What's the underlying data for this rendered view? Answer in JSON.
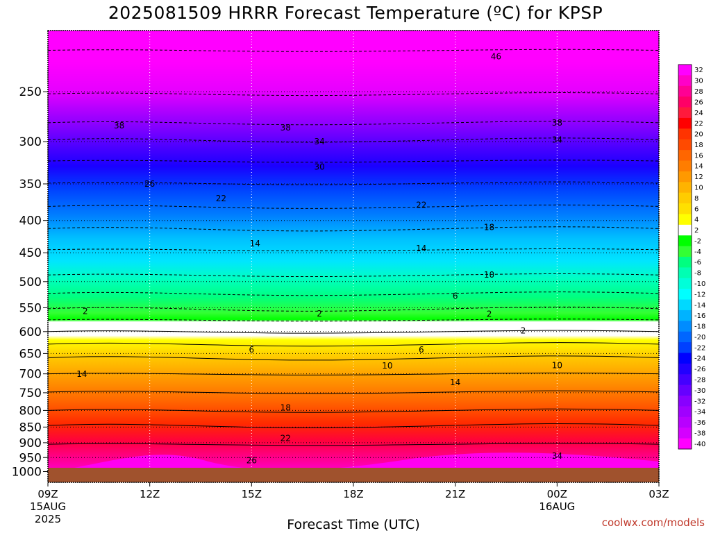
{
  "title": "2025081509 HRRR Forecast Temperature (ºC) for KPSP",
  "credit": "coolwx.com/models",
  "chart_data": {
    "type": "heatmap",
    "title": "2025081509 HRRR Forecast Temperature (ºC) for KPSP",
    "xlabel": "Forecast Time (UTC)",
    "ylabel": "",
    "y_scale": "log-pressure (inverted)",
    "y_ticks": [
      250,
      300,
      350,
      400,
      450,
      500,
      550,
      600,
      650,
      700,
      750,
      800,
      850,
      900,
      950,
      1000
    ],
    "x_ticks": [
      {
        "label": "09Z",
        "sub1": "15AUG",
        "sub2": "2025"
      },
      {
        "label": "12Z",
        "sub1": "",
        "sub2": ""
      },
      {
        "label": "15Z",
        "sub1": "",
        "sub2": ""
      },
      {
        "label": "18Z",
        "sub1": "",
        "sub2": ""
      },
      {
        "label": "21Z",
        "sub1": "",
        "sub2": ""
      },
      {
        "label": "00Z",
        "sub1": "16AUG",
        "sub2": ""
      },
      {
        "label": "03Z",
        "sub1": "",
        "sub2": ""
      }
    ],
    "x_hours": [
      0,
      3,
      6,
      9,
      12,
      15,
      18
    ],
    "colorbar_labels": [
      "32",
      "30",
      "28",
      "26",
      "24",
      "22",
      "20",
      "18",
      "16",
      "14",
      "12",
      "10",
      "8",
      "6",
      "4",
      "2",
      "-2",
      "-4",
      "-6",
      "-8",
      "-10",
      "-12",
      "-14",
      "-16",
      "-18",
      "-20",
      "-22",
      "-24",
      "-26",
      "-28",
      "-30",
      "-32",
      "-34",
      "-36",
      "-38",
      "-40"
    ],
    "colorbar_colors": [
      "#ff00ff",
      "#ff00c8",
      "#ff0094",
      "#ff0066",
      "#ff1a3c",
      "#ff0000",
      "#ff3300",
      "#ff4a00",
      "#ff6600",
      "#ff7d00",
      "#ff9900",
      "#ffb300",
      "#ffcc00",
      "#ffe000",
      "#ffff00",
      "#ffffff",
      "#00ff00",
      "#33ff33",
      "#00ff80",
      "#00ffb3",
      "#00ffd9",
      "#00ffff",
      "#00d9ff",
      "#00b3ff",
      "#008cff",
      "#0066ff",
      "#0040ff",
      "#0000ff",
      "#2200ff",
      "#4400ff",
      "#6600ff",
      "#8800ff",
      "#a000ff",
      "#b800ff",
      "#d400ff",
      "#ff00ff"
    ],
    "contour_labels": [
      {
        "value": "46",
        "hour": 13.2,
        "p": 220
      },
      {
        "value": "38",
        "hour": 2.1,
        "p": 283
      },
      {
        "value": "38",
        "hour": 7.0,
        "p": 285
      },
      {
        "value": "38",
        "hour": 15.0,
        "p": 280
      },
      {
        "value": "34",
        "hour": 8.0,
        "p": 300
      },
      {
        "value": "34",
        "hour": 15.0,
        "p": 298
      },
      {
        "value": "30",
        "hour": 8.0,
        "p": 329
      },
      {
        "value": "26",
        "hour": 3.0,
        "p": 350
      },
      {
        "value": "22",
        "hour": 5.1,
        "p": 369
      },
      {
        "value": "22",
        "hour": 11.0,
        "p": 378
      },
      {
        "value": "18",
        "hour": 13.0,
        "p": 410
      },
      {
        "value": "14",
        "hour": 6.1,
        "p": 435
      },
      {
        "value": "14",
        "hour": 11.0,
        "p": 443
      },
      {
        "value": "10",
        "hour": 13.0,
        "p": 488
      },
      {
        "value": "6",
        "hour": 12.0,
        "p": 527
      },
      {
        "value": "2",
        "hour": 1.1,
        "p": 557
      },
      {
        "value": "2",
        "hour": 8.0,
        "p": 562
      },
      {
        "value": "2",
        "hour": 13.0,
        "p": 563
      },
      {
        "value": "2",
        "hour": 14.0,
        "p": 598
      },
      {
        "value": "6",
        "hour": 6.0,
        "p": 641
      },
      {
        "value": "6",
        "hour": 11.0,
        "p": 641
      },
      {
        "value": "10",
        "hour": 10.0,
        "p": 680
      },
      {
        "value": "10",
        "hour": 15.0,
        "p": 679
      },
      {
        "value": "14",
        "hour": 1.0,
        "p": 701
      },
      {
        "value": "14",
        "hour": 12.0,
        "p": 722
      },
      {
        "value": "18",
        "hour": 7.0,
        "p": 792
      },
      {
        "value": "22",
        "hour": 7.0,
        "p": 885
      },
      {
        "value": "26",
        "hour": 6.0,
        "p": 960
      },
      {
        "value": "34",
        "hour": 15.0,
        "p": 945
      }
    ]
  }
}
